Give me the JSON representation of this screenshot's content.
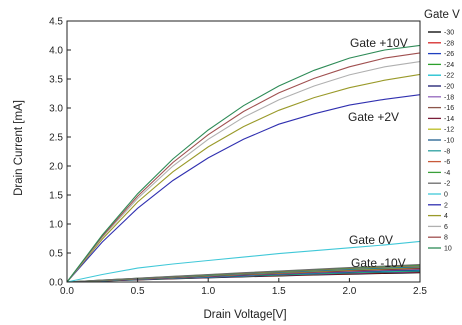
{
  "chart_data": {
    "type": "line",
    "xlabel": "Drain Voltage[V]",
    "ylabel": "Drain Current [mA]",
    "xlim": [
      0,
      2.5
    ],
    "ylim": [
      0,
      4.5
    ],
    "x_ticks": [
      "0.0",
      "0.5",
      "1.0",
      "1.5",
      "2.0",
      "2.5"
    ],
    "y_ticks": [
      "0.0",
      "0.5",
      "1.0",
      "1.5",
      "2.0",
      "2.5",
      "3.0",
      "3.5",
      "4.0",
      "4.5"
    ],
    "grid": false,
    "legend": {
      "title": "Gate V",
      "placement": "right, outside plot area (cropped)"
    },
    "annotations": [
      "Gate +10V",
      "Gate +2V",
      "Gate 0V",
      "Gate -10V"
    ],
    "x": [
      0,
      0.25,
      0.5,
      0.75,
      1.0,
      1.25,
      1.5,
      1.75,
      2.0,
      2.25,
      2.5
    ],
    "series": [
      {
        "name": "-30",
        "color": "#000000",
        "values": [
          0,
          0.019,
          0.037,
          0.055,
          0.072,
          0.089,
          0.105,
          0.12,
          0.135,
          0.149,
          0.16
        ]
      },
      {
        "name": "-28",
        "color": "#d62728",
        "values": [
          0,
          0.02,
          0.039,
          0.058,
          0.076,
          0.094,
          0.111,
          0.127,
          0.143,
          0.158,
          0.17
        ]
      },
      {
        "name": "-26",
        "color": "#1f3fbf",
        "values": [
          0,
          0.021,
          0.041,
          0.061,
          0.08,
          0.099,
          0.117,
          0.134,
          0.151,
          0.167,
          0.18
        ]
      },
      {
        "name": "-24",
        "color": "#2ca02c",
        "values": [
          0,
          0.022,
          0.043,
          0.064,
          0.084,
          0.104,
          0.123,
          0.141,
          0.159,
          0.176,
          0.19
        ]
      },
      {
        "name": "-22",
        "color": "#17becf",
        "values": [
          0,
          0.023,
          0.045,
          0.067,
          0.088,
          0.109,
          0.129,
          0.148,
          0.167,
          0.185,
          0.2
        ]
      },
      {
        "name": "-20",
        "color": "#1a1a6e",
        "values": [
          0,
          0.024,
          0.047,
          0.07,
          0.092,
          0.114,
          0.135,
          0.155,
          0.175,
          0.194,
          0.21
        ]
      },
      {
        "name": "-18",
        "color": "#9467bd",
        "values": [
          0,
          0.025,
          0.049,
          0.073,
          0.096,
          0.119,
          0.141,
          0.162,
          0.183,
          0.203,
          0.22
        ]
      },
      {
        "name": "-16",
        "color": "#8c564b",
        "values": [
          0,
          0.026,
          0.051,
          0.076,
          0.1,
          0.124,
          0.147,
          0.169,
          0.191,
          0.212,
          0.23
        ]
      },
      {
        "name": "-14",
        "color": "#7b1e3a",
        "values": [
          0,
          0.027,
          0.053,
          0.079,
          0.104,
          0.129,
          0.153,
          0.176,
          0.199,
          0.221,
          0.24
        ]
      },
      {
        "name": "-12",
        "color": "#bcbd22",
        "values": [
          0,
          0.028,
          0.055,
          0.082,
          0.108,
          0.134,
          0.159,
          0.183,
          0.207,
          0.23,
          0.25
        ]
      },
      {
        "name": "-10",
        "color": "#1f5f8f",
        "values": [
          0,
          0.029,
          0.057,
          0.085,
          0.112,
          0.139,
          0.165,
          0.19,
          0.215,
          0.239,
          0.26
        ]
      },
      {
        "name": "-8",
        "color": "#2ca0a0",
        "values": [
          0,
          0.03,
          0.06,
          0.089,
          0.117,
          0.145,
          0.172,
          0.198,
          0.224,
          0.249,
          0.27
        ]
      },
      {
        "name": "-6",
        "color": "#c85a3a",
        "values": [
          0,
          0.031,
          0.062,
          0.092,
          0.121,
          0.15,
          0.178,
          0.205,
          0.232,
          0.258,
          0.28
        ]
      },
      {
        "name": "-4",
        "color": "#3aa03a",
        "values": [
          0,
          0.032,
          0.064,
          0.095,
          0.125,
          0.155,
          0.184,
          0.212,
          0.24,
          0.267,
          0.29
        ]
      },
      {
        "name": "-2",
        "color": "#6b6b6b",
        "values": [
          0,
          0.033,
          0.066,
          0.098,
          0.129,
          0.16,
          0.19,
          0.219,
          0.248,
          0.276,
          0.3
        ]
      },
      {
        "name": "0",
        "color": "#40c8d8",
        "values": [
          0,
          0.13,
          0.24,
          0.31,
          0.37,
          0.43,
          0.49,
          0.54,
          0.59,
          0.64,
          0.7
        ]
      },
      {
        "name": "2",
        "color": "#3030b0",
        "values": [
          0,
          0.69,
          1.27,
          1.75,
          2.14,
          2.46,
          2.72,
          2.9,
          3.05,
          3.15,
          3.23
        ]
      },
      {
        "name": "4",
        "color": "#9a9a2a",
        "values": [
          0,
          0.74,
          1.38,
          1.9,
          2.33,
          2.68,
          2.96,
          3.18,
          3.35,
          3.48,
          3.58
        ]
      },
      {
        "name": "6",
        "color": "#b0b0b0",
        "values": [
          0,
          0.77,
          1.44,
          2.0,
          2.46,
          2.84,
          3.14,
          3.38,
          3.57,
          3.71,
          3.8
        ]
      },
      {
        "name": "8",
        "color": "#a05050",
        "values": [
          0,
          0.79,
          1.48,
          2.06,
          2.54,
          2.94,
          3.26,
          3.51,
          3.71,
          3.86,
          3.95
        ]
      },
      {
        "name": "10",
        "color": "#2e8b57",
        "values": [
          0,
          0.81,
          1.52,
          2.12,
          2.62,
          3.04,
          3.38,
          3.65,
          3.86,
          4.0,
          4.08
        ]
      }
    ]
  }
}
